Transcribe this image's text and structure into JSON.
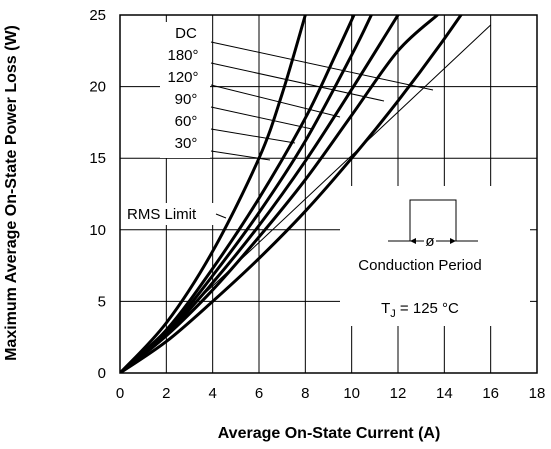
{
  "chart_data": {
    "type": "line",
    "xlabel": "Average On-State Current (A)",
    "ylabel": "Maximum Average On-State Power Loss (W)",
    "xlim": [
      0,
      18
    ],
    "ylim": [
      0,
      25
    ],
    "x_ticks": [
      "0",
      "2",
      "4",
      "6",
      "8",
      "10",
      "12",
      "14",
      "16",
      "18"
    ],
    "y_ticks": [
      "0",
      "5",
      "10",
      "15",
      "20",
      "25"
    ],
    "grid": true,
    "series": [
      {
        "name": "DC",
        "x": [
          0,
          2,
          4,
          6,
          8,
          10,
          12,
          13.85,
          16
        ],
        "y": [
          0,
          2.2,
          5.0,
          8.0,
          11.3,
          15.0,
          19.0,
          23.0,
          28.0
        ]
      },
      {
        "name": "180°",
        "x": [
          0,
          2,
          4,
          6,
          8,
          10,
          12,
          13.7
        ],
        "y": [
          0,
          2.6,
          5.8,
          9.5,
          13.5,
          18.0,
          22.5,
          25.0
        ]
      },
      {
        "name": "120°",
        "x": [
          0,
          2,
          4,
          6,
          8,
          10,
          12
        ],
        "y": [
          0,
          2.7,
          6.3,
          10.3,
          14.8,
          19.8,
          25.0
        ]
      },
      {
        "name": "90°",
        "x": [
          0,
          2,
          4,
          6,
          8,
          10,
          10.85
        ],
        "y": [
          0,
          2.8,
          6.8,
          11.2,
          16.2,
          22.2,
          25.0
        ]
      },
      {
        "name": "60°",
        "x": [
          0,
          2,
          4,
          6,
          8,
          9.3,
          10.1
        ],
        "y": [
          0,
          3.0,
          7.3,
          12.2,
          17.8,
          22.2,
          25.0
        ]
      },
      {
        "name": "30°",
        "x": [
          0,
          2,
          4,
          6,
          7,
          8
        ],
        "y": [
          0,
          3.5,
          8.5,
          15.0,
          19.5,
          25.0
        ]
      }
    ],
    "rms_limit": {
      "name": "RMS Limit",
      "x": [
        0,
        16
      ],
      "y": [
        0,
        24.3
      ]
    },
    "annotations": {
      "legend_labels": [
        "DC",
        "180°",
        "120°",
        "90°",
        "60°",
        "30°"
      ],
      "rms_label": "RMS Limit",
      "conduction_label": "Conduction Period",
      "phi_symbol": "ø",
      "tj_prefix": "T",
      "tj_sub": "J",
      "tj_suffix": " = 125 °C"
    }
  }
}
